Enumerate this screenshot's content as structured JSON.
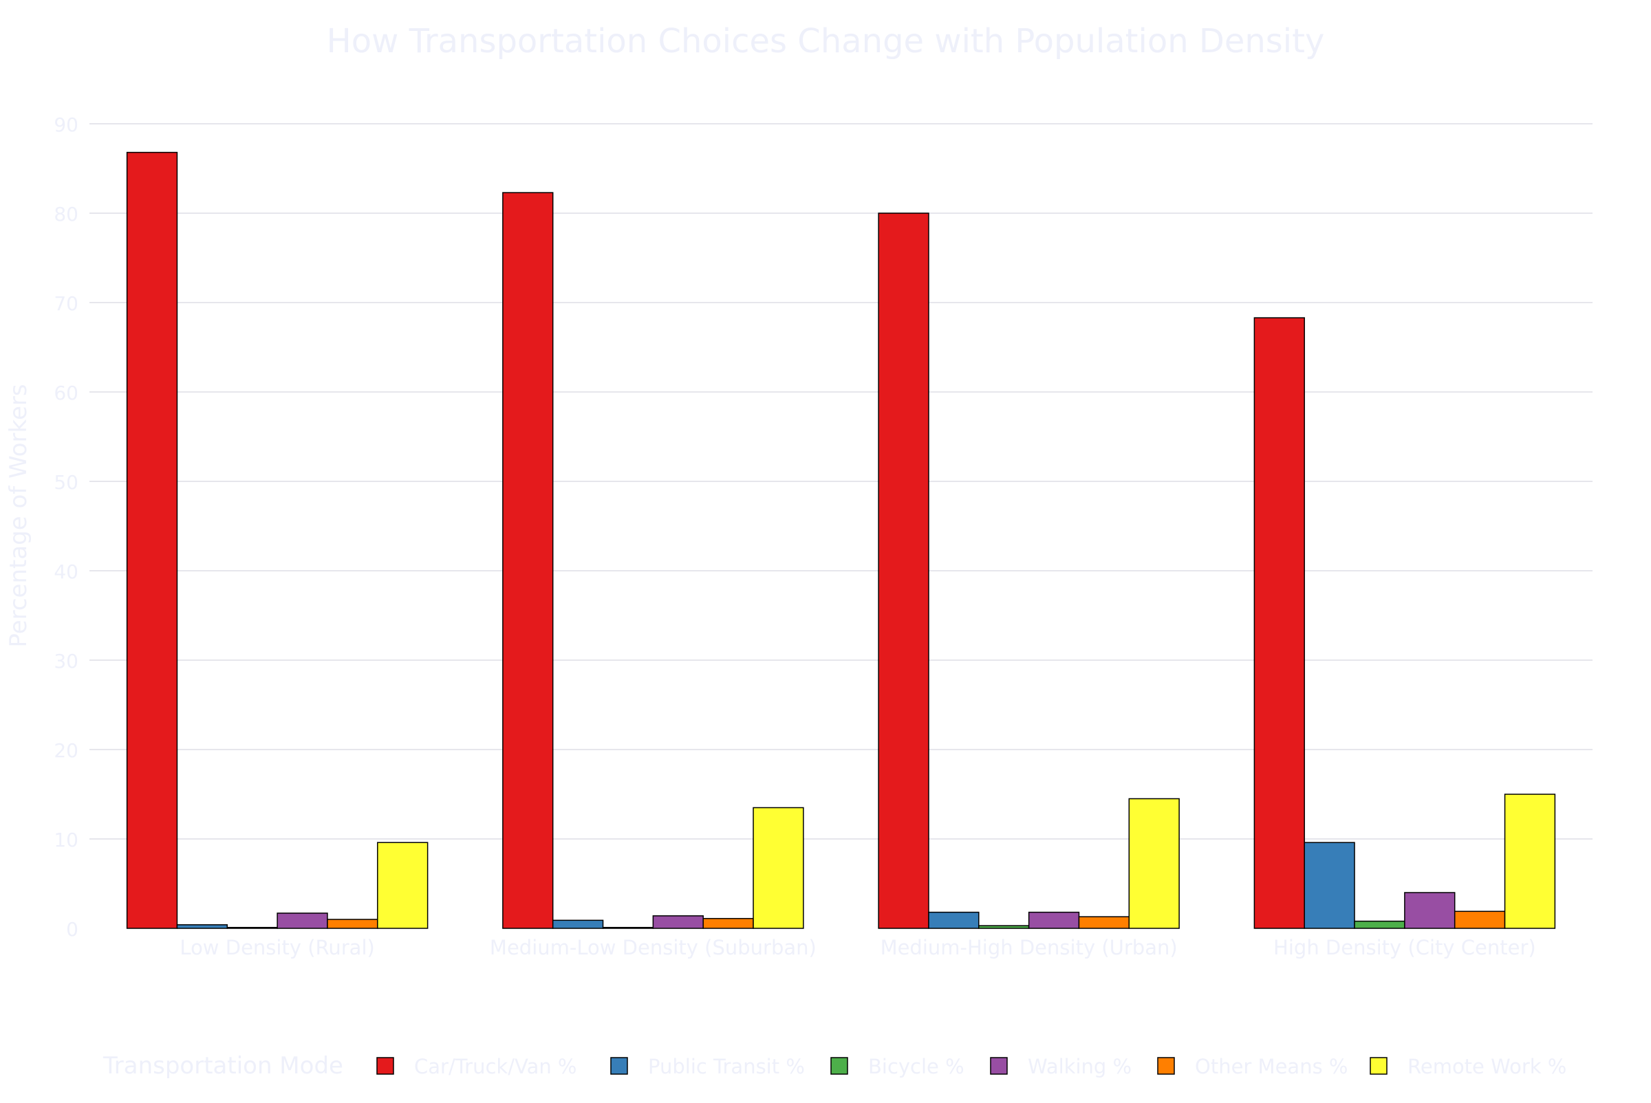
{
  "chart_data": {
    "type": "bar",
    "title": "How Transportation Choices Change with Population Density",
    "xlabel": "",
    "ylabel": "Percentage of Workers",
    "ylim": [
      0,
      90
    ],
    "yticks": [
      0,
      10,
      20,
      30,
      40,
      50,
      60,
      70,
      80,
      90
    ],
    "grid": true,
    "legend_title": "Transportation Mode",
    "legend_position": "bottom",
    "categories": [
      "Low Density (Rural)",
      "Medium-Low Density (Suburban)",
      "Medium-High Density (Urban)",
      "High Density (City Center)"
    ],
    "series": [
      {
        "name": "Car/Truck/Van %",
        "color": "#e41a1c",
        "values": [
          86.8,
          82.3,
          80.0,
          68.3
        ]
      },
      {
        "name": "Public Transit %",
        "color": "#377eb8",
        "values": [
          0.4,
          0.9,
          1.8,
          9.6
        ]
      },
      {
        "name": "Bicycle %",
        "color": "#4daf4a",
        "values": [
          0.1,
          0.1,
          0.3,
          0.8
        ]
      },
      {
        "name": "Walking %",
        "color": "#984ea3",
        "values": [
          1.7,
          1.4,
          1.8,
          4.0
        ]
      },
      {
        "name": "Other Means %",
        "color": "#ff7f00",
        "values": [
          1.0,
          1.1,
          1.3,
          1.9
        ]
      },
      {
        "name": "Remote Work %",
        "color": "#ffff33",
        "values": [
          9.6,
          13.5,
          14.5,
          15.0
        ]
      }
    ],
    "colors": {
      "text": "#eef0fa",
      "grid": "#e6e6ec",
      "bar_outline": "#000000",
      "background": "#ffffff"
    }
  }
}
